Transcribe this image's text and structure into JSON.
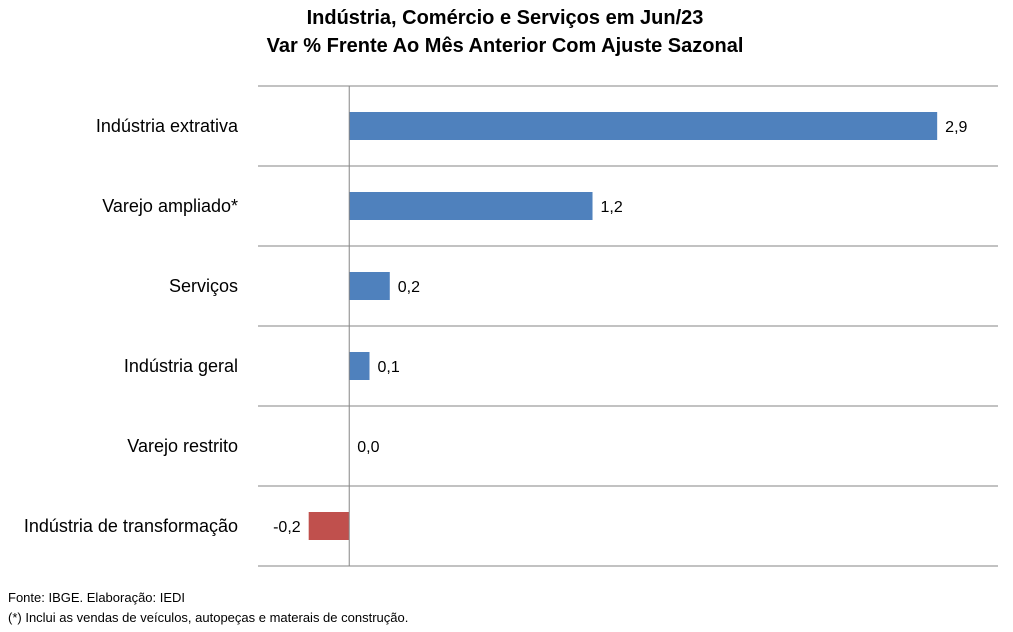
{
  "chart_data": {
    "type": "bar",
    "orientation": "horizontal",
    "title": "Indústria, Comércio e Serviços em Jun/23",
    "subtitle": "Var % Frente Ao Mês Anterior Com Ajuste Sazonal",
    "categories": [
      "Indústria extrativa",
      "Varejo ampliado*",
      "Serviços",
      "Indústria geral",
      "Varejo restrito",
      "Indústria de transformação"
    ],
    "values": [
      2.9,
      1.2,
      0.2,
      0.1,
      0.0,
      -0.2
    ],
    "value_labels": [
      "2,9",
      "1,2",
      "0,2",
      "0,1",
      "0,0",
      "-0,2"
    ],
    "xlim": [
      -0.45,
      3.2
    ],
    "grid": "horizontal separators",
    "legend": "none",
    "colors": {
      "positive": "#4F81BD",
      "negative": "#C0504D",
      "grid": "#868686"
    }
  },
  "footer": {
    "source": "Fonte: IBGE. Elaboração: IEDI",
    "note": "(*) Inclui as vendas de veículos, autopeças e materais de construção."
  }
}
